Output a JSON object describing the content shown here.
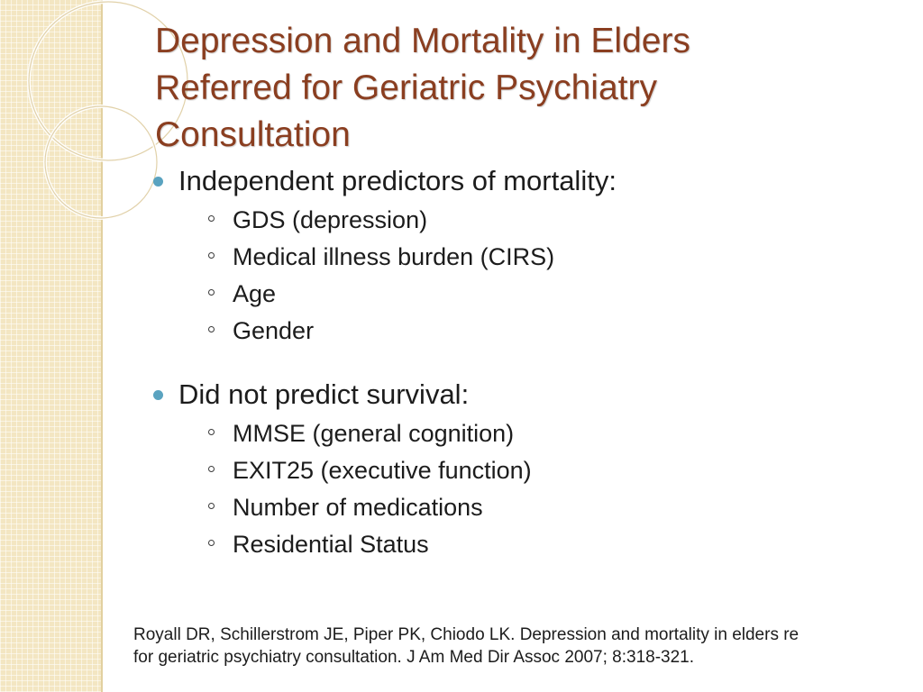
{
  "slide": {
    "title_lines": [
      "Depression and Mortality in Elders",
      "Referred for Geriatric Psychiatry",
      "Consultation"
    ],
    "groups": [
      {
        "heading": "Independent predictors of mortality:",
        "items": [
          "GDS (depression)",
          "Medical illness burden (CIRS)",
          "Age",
          "Gender"
        ]
      },
      {
        "heading": "Did not predict survival:",
        "items": [
          "MMSE (general cognition)",
          "EXIT25 (executive function)",
          "Number of medications",
          "Residential Status"
        ]
      }
    ],
    "reference_lines": [
      "Royall DR, Schillerstrom JE, Piper PK, Chiodo LK. Depression and mortality in elders re",
      "for geriatric psychiatry consultation. J Am Med Dir Assoc 2007; 8:318-321."
    ]
  },
  "theme": {
    "title_color": "#8a3e20",
    "bullet_color": "#5aa3c0",
    "strip_color": "#f3e6c2"
  }
}
